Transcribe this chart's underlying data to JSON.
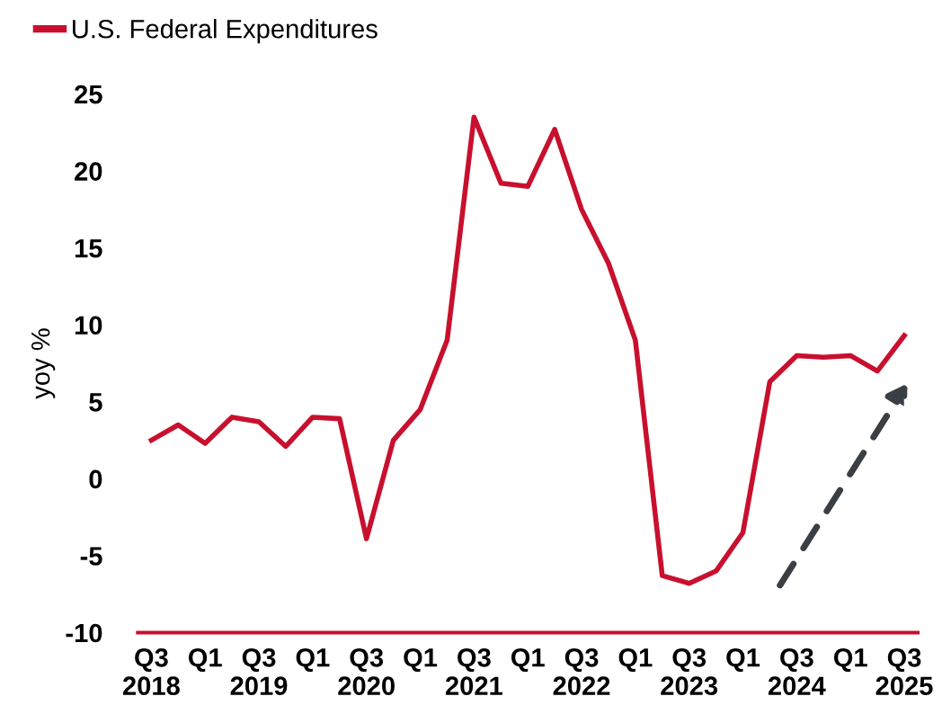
{
  "chart_data": {
    "type": "line",
    "ylabel": "yoy %",
    "categories": [
      "Q3\n2018",
      null,
      "Q1",
      null,
      "Q3\n2019",
      null,
      "Q1",
      null,
      "Q3\n2020",
      null,
      "Q1",
      null,
      "Q3\n2021",
      null,
      "Q1",
      null,
      "Q3\n2022",
      null,
      "Q1",
      null,
      "Q3\n2023",
      null,
      "Q1",
      null,
      "Q3\n2024",
      null,
      "Q1",
      null,
      "Q3\n2025"
    ],
    "series": [
      {
        "name": "U.S. Federal Expenditures",
        "color": "#c8102e",
        "values": [
          2.5,
          3.5,
          2.3,
          4,
          3.7,
          2.1,
          4,
          3.9,
          -3.9,
          2.5,
          4.5,
          9,
          23.5,
          19.2,
          19,
          22.7,
          17.5,
          14,
          9,
          -6.3,
          -6.8,
          -6,
          -3.5,
          6.3,
          8,
          7.9,
          8,
          7,
          9.3
        ]
      }
    ],
    "ylim": [
      -10,
      25
    ],
    "yticks": [
      -10,
      -5,
      0,
      5,
      10,
      15,
      20,
      25
    ],
    "grid": false,
    "legend": "top left",
    "marker": "none",
    "line_style": "solid"
  }
}
